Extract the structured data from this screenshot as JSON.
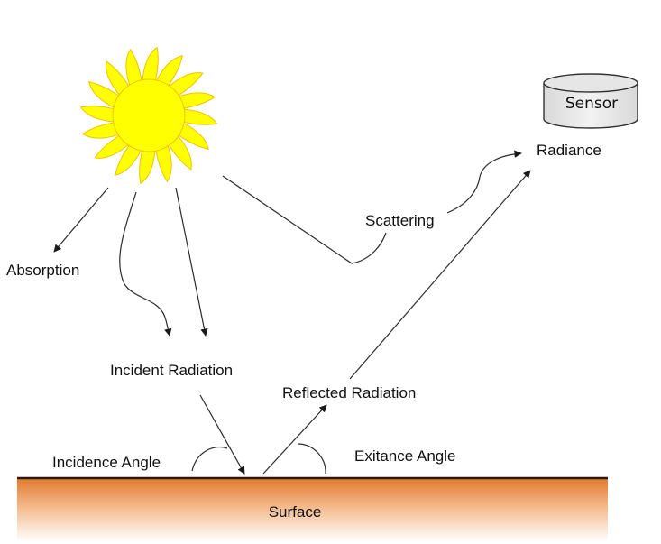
{
  "labels": {
    "sensor": "Sensor",
    "radiance": "Radiance",
    "scattering": "Scattering",
    "absorption": "Absorption",
    "incident_radiation": "Incident Radiation",
    "reflected_radiation": "Reflected Radiation",
    "incidence_angle": "Incidence Angle",
    "exitance_angle": "Exitance Angle",
    "surface": "Surface"
  },
  "colors": {
    "sun_fill": "#ffff00",
    "sun_stroke": "#f2c200",
    "surface_top": "#e07a2e",
    "surface_bottom": "#ffffff",
    "surface_edge": "#2a1a10",
    "sensor_fill": "#e6e6e6",
    "line": "#2b2b2b"
  },
  "icons": {
    "sun": "sun-icon",
    "sensor": "sensor-cylinder-icon"
  }
}
